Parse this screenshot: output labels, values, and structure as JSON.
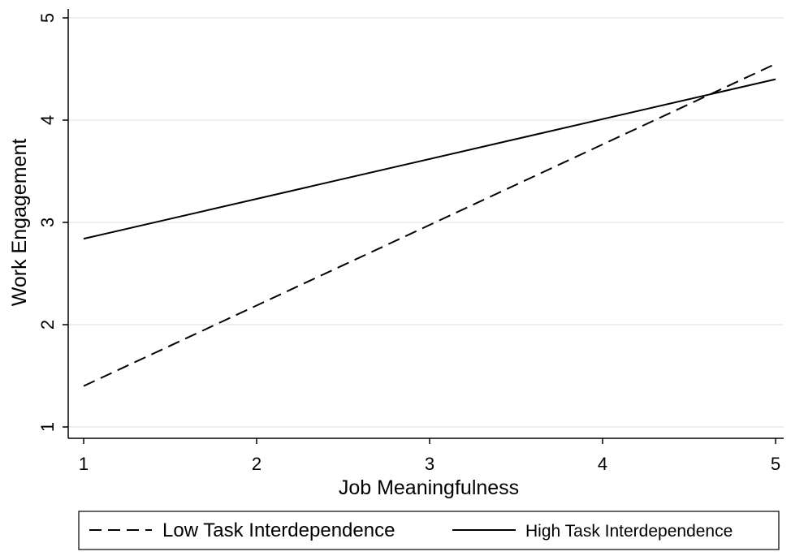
{
  "chart_data": {
    "type": "line",
    "xlabel": "Job Meaningfulness",
    "ylabel": "Work Engagement",
    "xlim": [
      1,
      5
    ],
    "ylim": [
      1,
      5
    ],
    "x_ticks": [
      1,
      2,
      3,
      4,
      5
    ],
    "y_ticks": [
      1,
      2,
      3,
      4,
      5
    ],
    "grid": "horizontal",
    "legend_position": "bottom",
    "series": [
      {
        "name": "Low Task Interdependence",
        "style": "dashed",
        "color": "#000000",
        "x": [
          1,
          5
        ],
        "y": [
          1.4,
          4.55
        ]
      },
      {
        "name": "High Task Interdependence",
        "style": "solid",
        "color": "#000000",
        "x": [
          1,
          5
        ],
        "y": [
          2.84,
          4.4
        ]
      }
    ]
  }
}
